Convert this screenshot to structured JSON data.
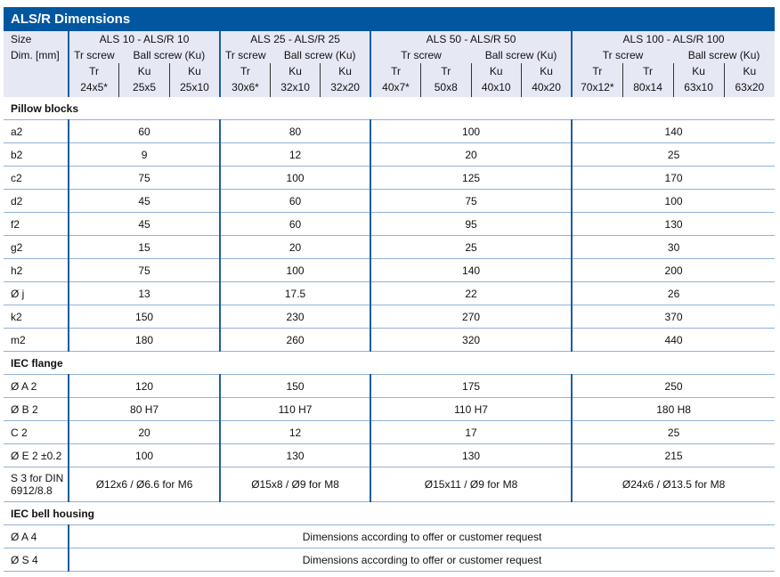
{
  "title": "ALS/R Dimensions",
  "header": {
    "size_label": "Size",
    "dim_label": "Dim. [mm]",
    "groups": [
      {
        "name": "ALS 10 - ALS/R 10",
        "tr": "Tr screw",
        "ku": "Ball screw (Ku)",
        "cols": [
          [
            "Tr",
            "24x5*"
          ],
          [
            "Ku",
            "25x5"
          ],
          [
            "Ku",
            "25x10"
          ]
        ]
      },
      {
        "name": "ALS 25 - ALS/R 25",
        "tr": "Tr screw",
        "ku": "Ball screw (Ku)",
        "cols": [
          [
            "Tr",
            "30x6*"
          ],
          [
            "Ku",
            "32x10"
          ],
          [
            "Ku",
            "32x20"
          ]
        ]
      },
      {
        "name": "ALS 50 - ALS/R 50",
        "tr": "Tr screw",
        "ku": "Ball screw (Ku)",
        "cols": [
          [
            "Tr",
            "40x7*"
          ],
          [
            "Tr",
            "50x8"
          ],
          [
            "Ku",
            "40x10"
          ],
          [
            "Ku",
            "40x20"
          ]
        ]
      },
      {
        "name": "ALS 100 - ALS/R 100",
        "tr": "Tr screw",
        "ku": "Ball screw (Ku)",
        "cols": [
          [
            "Tr",
            "70x12*"
          ],
          [
            "Tr",
            "80x14"
          ],
          [
            "Ku",
            "63x10"
          ],
          [
            "Ku",
            "63x20"
          ]
        ]
      }
    ]
  },
  "sections": [
    {
      "name": "Pillow blocks",
      "rows": [
        [
          "a2",
          "60",
          "80",
          "100",
          "140"
        ],
        [
          "b2",
          "9",
          "12",
          "20",
          "25"
        ],
        [
          "c2",
          "75",
          "100",
          "125",
          "170"
        ],
        [
          "d2",
          "45",
          "60",
          "75",
          "100"
        ],
        [
          "f2",
          "45",
          "60",
          "95",
          "130"
        ],
        [
          "g2",
          "15",
          "20",
          "25",
          "30"
        ],
        [
          "h2",
          "75",
          "100",
          "140",
          "200"
        ],
        [
          "Ø j",
          "13",
          "17.5",
          "22",
          "26"
        ],
        [
          "k2",
          "150",
          "230",
          "270",
          "370"
        ],
        [
          "m2",
          "180",
          "260",
          "320",
          "440"
        ]
      ]
    },
    {
      "name": "IEC flange",
      "rows": [
        [
          "Ø A 2",
          "120",
          "150",
          "175",
          "250"
        ],
        [
          "Ø B 2",
          "80 H7",
          "110 H7",
          "110 H7",
          "180 H8"
        ],
        [
          "C 2",
          "20",
          "12",
          "17",
          "25"
        ],
        [
          "Ø E 2 ±0.2",
          "100",
          "130",
          "130",
          "215"
        ],
        [
          "S 3 for DIN 6912/8.8",
          "Ø12x6 / Ø6.6 for M6",
          "Ø15x8 / Ø9 for M8",
          "Ø15x11 / Ø9 for M8",
          "Ø24x6 / Ø13.5 for M8"
        ]
      ]
    },
    {
      "name": "IEC bell housing",
      "rows": [
        [
          "Ø A 4",
          "Dimensions according to offer or customer request"
        ],
        [
          "Ø S 4",
          "Dimensions according to offer or customer request"
        ]
      ]
    }
  ]
}
